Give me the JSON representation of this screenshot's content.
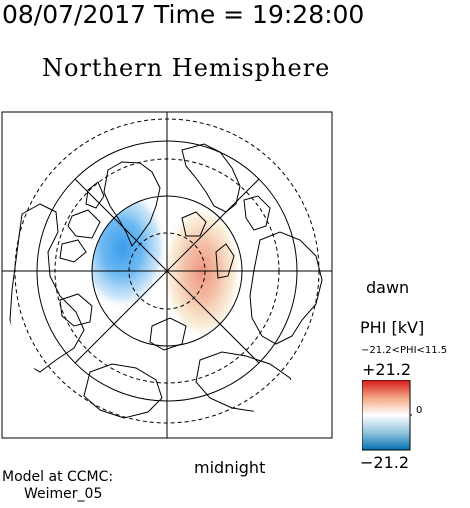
{
  "header": {
    "date": "08/07/2017",
    "time_label": "Time",
    "time_value": "= 19:28:00",
    "full": "08/07/2017 Time = 19:28:00"
  },
  "map": {
    "title": "Northern Hemisphere",
    "label_dawn": "dawn",
    "label_midnight": "midnight"
  },
  "colorbar": {
    "title": "PHI [kV]",
    "range_text": "−21.2<PHI<11.5",
    "max_label": "+21.2",
    "min_label": "−21.2",
    "zero_label": "0",
    "colors": [
      "#d7191c",
      "#f4a582",
      "#ffffff",
      "#92c5de",
      "#0571b0"
    ]
  },
  "model": {
    "line1": "Model at CCMC:",
    "line2": "Weimer_05"
  }
}
